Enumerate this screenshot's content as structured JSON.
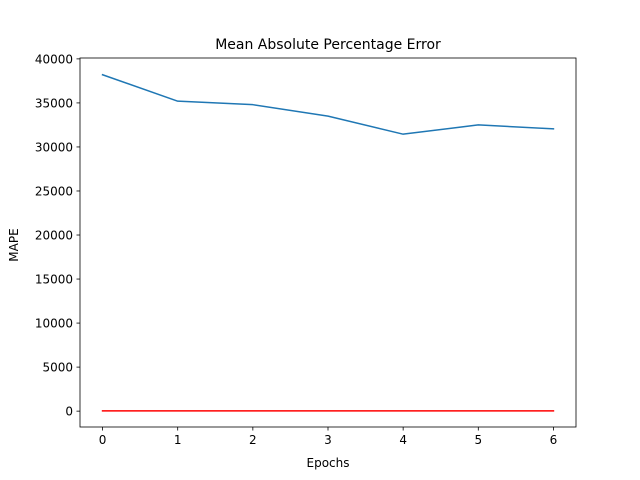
{
  "chart_data": {
    "type": "line",
    "title": "Mean Absolute Percentage Error",
    "xlabel": "Epochs",
    "ylabel": "MAPE",
    "x": [
      0,
      1,
      2,
      3,
      4,
      5,
      6
    ],
    "xlim": [
      -0.3,
      6.3
    ],
    "ylim": [
      -1800,
      40100
    ],
    "xticks": [
      0,
      1,
      2,
      3,
      4,
      5,
      6
    ],
    "yticks": [
      0,
      5000,
      10000,
      15000,
      20000,
      25000,
      30000,
      35000,
      40000
    ],
    "grid": false,
    "series": [
      {
        "color": "#1f77b4",
        "values": [
          38200,
          35200,
          34800,
          33500,
          31450,
          32500,
          32050
        ]
      },
      {
        "color": "#ff0000",
        "values": [
          30,
          30,
          30,
          30,
          30,
          30,
          30
        ]
      }
    ]
  }
}
